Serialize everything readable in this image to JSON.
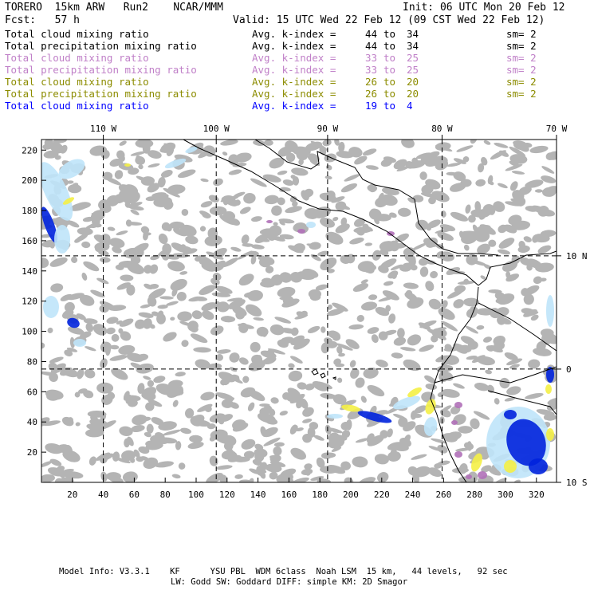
{
  "header": {
    "model": "TORERO  15km ARW   Run2    NCAR/MMM",
    "init": "Init: 06 UTC Mon 20 Feb 12",
    "fcst": "Fcst:   57 h",
    "valid": "Valid: 15 UTC Wed 22 Feb 12 (09 CST Wed 22 Feb 12)"
  },
  "legend": [
    {
      "field": "Total cloud mixing ratio",
      "stat": "Avg. k-index =",
      "from": "44",
      "to_word": "to",
      "to": "34",
      "sm": "sm= 2",
      "color": "#000000"
    },
    {
      "field": "Total precipitation mixing ratio",
      "stat": "Avg. k-index =",
      "from": "44",
      "to_word": "to",
      "to": "34",
      "sm": "sm= 2",
      "color": "#000000"
    },
    {
      "field": "Total cloud mixing ratio",
      "stat": "Avg. k-index =",
      "from": "33",
      "to_word": "to",
      "to": "25",
      "sm": "sm= 2",
      "color": "#c080c8"
    },
    {
      "field": "Total precipitation mixing ratio",
      "stat": "Avg. k-index =",
      "from": "33",
      "to_word": "to",
      "to": "25",
      "sm": "sm= 2",
      "color": "#c080c8"
    },
    {
      "field": "Total cloud mixing ratio",
      "stat": "Avg. k-index =",
      "from": "26",
      "to_word": "to",
      "to": "20",
      "sm": "sm= 2",
      "color": "#8c8c00"
    },
    {
      "field": "Total precipitation mixing ratio",
      "stat": "Avg. k-index =",
      "from": "26",
      "to_word": "to",
      "to": "20",
      "sm": "sm= 2",
      "color": "#8c8c00"
    },
    {
      "field": "Total cloud mixing ratio",
      "stat": "Avg. k-index =",
      "from": "19",
      "to_word": "to",
      "to": "4",
      "sm": "",
      "color": "#0000ff"
    }
  ],
  "map": {
    "x_ticks": [
      20,
      40,
      60,
      80,
      100,
      120,
      140,
      160,
      180,
      200,
      220,
      240,
      260,
      280,
      300,
      320
    ],
    "y_ticks": [
      20,
      40,
      60,
      80,
      100,
      120,
      140,
      160,
      180,
      200,
      220
    ],
    "x_range": [
      0,
      333
    ],
    "y_range": [
      0,
      227
    ],
    "lon_labels": [
      "110 W",
      "100 W",
      "90 W",
      "80 W",
      "70 W"
    ],
    "lon_grid_x": [
      40,
      113,
      185,
      259,
      333
    ],
    "lat_labels": [
      "10 N",
      "0",
      "10 S"
    ],
    "lat_grid_y": [
      150,
      75,
      0
    ],
    "colors": {
      "cloud_gray": "#b4b4b4",
      "blue": "#0022dd",
      "light_blue": "#bfe4fa",
      "yellow": "#f4f046",
      "purple": "#b070b8"
    }
  },
  "footer": {
    "line1": "Model Info: V3.3.1    KF      YSU PBL  WDM 6class  Noah LSM  15 km,   44 levels,   92 sec",
    "line2": "LW: Godd SW: Goddard DIFF: simple KM: 2D Smagor"
  }
}
